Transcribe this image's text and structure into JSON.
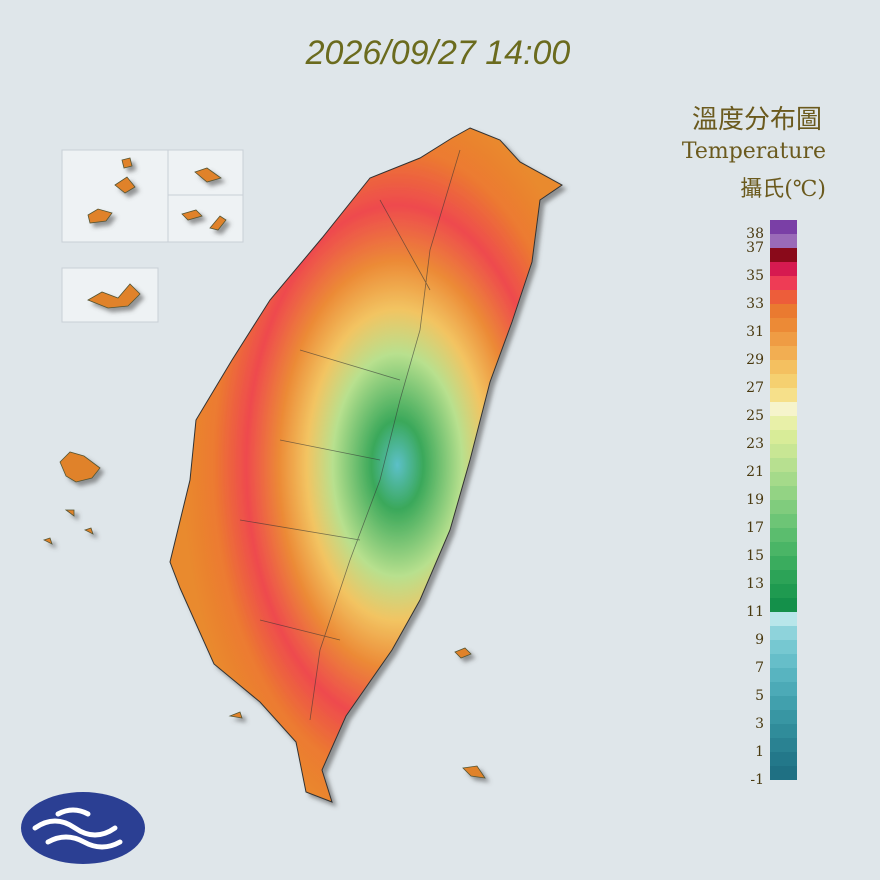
{
  "header": {
    "timestamp": "2026/09/27 14:00"
  },
  "legend": {
    "title": "溫度分布圖",
    "subtitle": "Temperature",
    "unit": "攝氏(℃)",
    "ticks": [
      38,
      37,
      35,
      33,
      31,
      29,
      27,
      25,
      23,
      21,
      19,
      17,
      15,
      13,
      11,
      9,
      7,
      5,
      3,
      1,
      -1
    ],
    "colors": [
      "#1f7083",
      "#23788a",
      "#2a8292",
      "#308c9a",
      "#3896a3",
      "#41a0ad",
      "#4caab7",
      "#58b4c0",
      "#66bec9",
      "#76c8d1",
      "#8ed3db",
      "#b8e6ea",
      "#14904a",
      "#1f9a50",
      "#2ca357",
      "#3aac5e",
      "#4ab566",
      "#5bbd6e",
      "#6dc576",
      "#80cc7d",
      "#93d384",
      "#a5da8a",
      "#b7e090",
      "#c8e694",
      "#d8ec98",
      "#e8f0a8",
      "#f6f4cc",
      "#f6e08a",
      "#f5d070",
      "#f4c060",
      "#f2ae52",
      "#ef9c44",
      "#ec8a36",
      "#ea7a30",
      "#ed5d3a",
      "#ee3c55",
      "#d61a50",
      "#8a0a1a",
      "#9a6ab8",
      "#7a3fa6"
    ]
  }
}
